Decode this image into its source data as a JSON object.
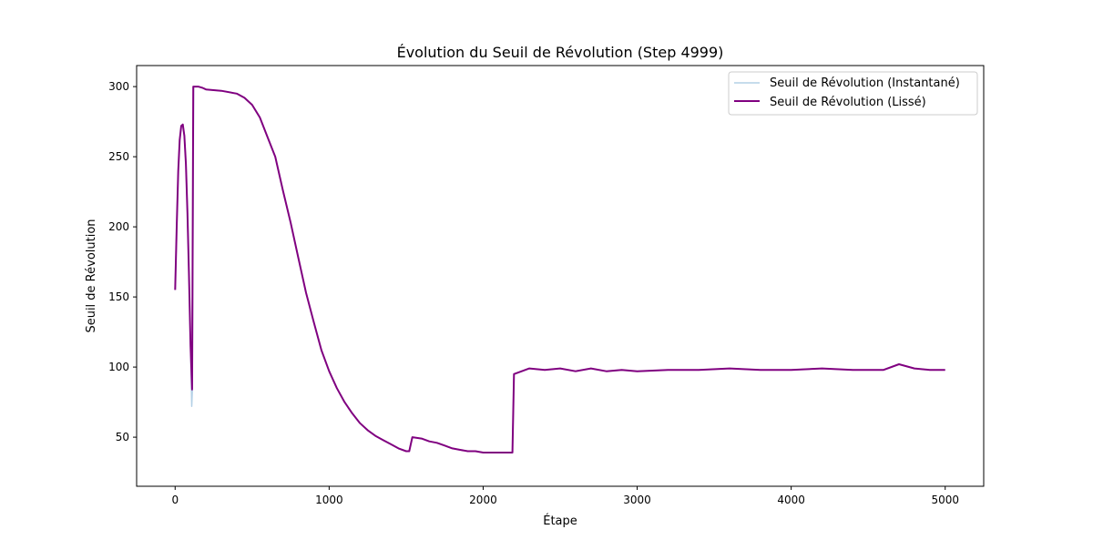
{
  "chart_data": {
    "type": "line",
    "title": "Évolution du Seuil de Révolution (Step 4999)",
    "xlabel": "Étape",
    "ylabel": "Seuil de Révolution",
    "xlim": [
      -250,
      5250
    ],
    "ylim": [
      15,
      315
    ],
    "xticks": [
      0,
      1000,
      2000,
      3000,
      4000,
      5000
    ],
    "yticks": [
      50,
      100,
      150,
      200,
      250,
      300
    ],
    "grid": false,
    "legend_position": "top-right",
    "series": [
      {
        "name": "Seuil de Révolution (Instantané)",
        "color": "#b3d0e6",
        "points": [
          [
            0,
            155
          ],
          [
            10,
            200
          ],
          [
            20,
            240
          ],
          [
            30,
            262
          ],
          [
            40,
            272
          ],
          [
            50,
            273
          ],
          [
            60,
            265
          ],
          [
            70,
            245
          ],
          [
            80,
            210
          ],
          [
            90,
            165
          ],
          [
            100,
            115
          ],
          [
            108,
            72
          ],
          [
            112,
            84
          ],
          [
            120,
            300
          ],
          [
            150,
            300
          ],
          [
            180,
            299
          ],
          [
            200,
            298
          ],
          [
            300,
            297
          ],
          [
            400,
            295
          ],
          [
            450,
            292
          ],
          [
            500,
            287
          ],
          [
            550,
            278
          ],
          [
            600,
            264
          ],
          [
            650,
            250
          ],
          [
            700,
            226
          ],
          [
            750,
            203
          ],
          [
            800,
            178
          ],
          [
            850,
            153
          ],
          [
            900,
            132
          ],
          [
            950,
            112
          ],
          [
            1000,
            97
          ],
          [
            1050,
            85
          ],
          [
            1100,
            75
          ],
          [
            1150,
            67
          ],
          [
            1200,
            60
          ],
          [
            1250,
            55
          ],
          [
            1300,
            51
          ],
          [
            1350,
            48
          ],
          [
            1400,
            45
          ],
          [
            1450,
            42
          ],
          [
            1500,
            40
          ],
          [
            1520,
            40
          ],
          [
            1540,
            50
          ],
          [
            1600,
            49
          ],
          [
            1650,
            47
          ],
          [
            1700,
            46
          ],
          [
            1750,
            44
          ],
          [
            1800,
            42
          ],
          [
            1850,
            41
          ],
          [
            1900,
            40
          ],
          [
            1950,
            40
          ],
          [
            2000,
            39
          ],
          [
            2050,
            39
          ],
          [
            2100,
            39
          ],
          [
            2150,
            39
          ],
          [
            2190,
            39
          ],
          [
            2200,
            95
          ],
          [
            2300,
            99
          ],
          [
            2400,
            98
          ],
          [
            2500,
            99
          ],
          [
            2600,
            97
          ],
          [
            2700,
            99
          ],
          [
            2800,
            97
          ],
          [
            2900,
            98
          ],
          [
            3000,
            97
          ],
          [
            3200,
            98
          ],
          [
            3400,
            98
          ],
          [
            3600,
            99
          ],
          [
            3800,
            98
          ],
          [
            4000,
            98
          ],
          [
            4200,
            99
          ],
          [
            4400,
            98
          ],
          [
            4600,
            98
          ],
          [
            4700,
            102
          ],
          [
            4800,
            99
          ],
          [
            4900,
            98
          ],
          [
            5000,
            98
          ]
        ]
      },
      {
        "name": "Seuil de Révolution (Lissé)",
        "color": "#800080",
        "points": [
          [
            0,
            155
          ],
          [
            10,
            200
          ],
          [
            20,
            240
          ],
          [
            30,
            262
          ],
          [
            40,
            272
          ],
          [
            50,
            273
          ],
          [
            60,
            265
          ],
          [
            70,
            245
          ],
          [
            80,
            210
          ],
          [
            90,
            165
          ],
          [
            100,
            115
          ],
          [
            110,
            84
          ],
          [
            118,
            300
          ],
          [
            150,
            300
          ],
          [
            180,
            299
          ],
          [
            200,
            298
          ],
          [
            300,
            297
          ],
          [
            400,
            295
          ],
          [
            450,
            292
          ],
          [
            500,
            287
          ],
          [
            550,
            278
          ],
          [
            600,
            264
          ],
          [
            650,
            250
          ],
          [
            700,
            226
          ],
          [
            750,
            203
          ],
          [
            800,
            178
          ],
          [
            850,
            153
          ],
          [
            900,
            132
          ],
          [
            950,
            112
          ],
          [
            1000,
            97
          ],
          [
            1050,
            85
          ],
          [
            1100,
            75
          ],
          [
            1150,
            67
          ],
          [
            1200,
            60
          ],
          [
            1250,
            55
          ],
          [
            1300,
            51
          ],
          [
            1350,
            48
          ],
          [
            1400,
            45
          ],
          [
            1450,
            42
          ],
          [
            1500,
            40
          ],
          [
            1520,
            40
          ],
          [
            1540,
            50
          ],
          [
            1600,
            49
          ],
          [
            1650,
            47
          ],
          [
            1700,
            46
          ],
          [
            1750,
            44
          ],
          [
            1800,
            42
          ],
          [
            1850,
            41
          ],
          [
            1900,
            40
          ],
          [
            1950,
            40
          ],
          [
            2000,
            39
          ],
          [
            2050,
            39
          ],
          [
            2100,
            39
          ],
          [
            2150,
            39
          ],
          [
            2190,
            39
          ],
          [
            2200,
            95
          ],
          [
            2300,
            99
          ],
          [
            2400,
            98
          ],
          [
            2500,
            99
          ],
          [
            2600,
            97
          ],
          [
            2700,
            99
          ],
          [
            2800,
            97
          ],
          [
            2900,
            98
          ],
          [
            3000,
            97
          ],
          [
            3200,
            98
          ],
          [
            3400,
            98
          ],
          [
            3600,
            99
          ],
          [
            3800,
            98
          ],
          [
            4000,
            98
          ],
          [
            4200,
            99
          ],
          [
            4400,
            98
          ],
          [
            4600,
            98
          ],
          [
            4700,
            102
          ],
          [
            4800,
            99
          ],
          [
            4900,
            98
          ],
          [
            5000,
            98
          ]
        ]
      }
    ]
  }
}
